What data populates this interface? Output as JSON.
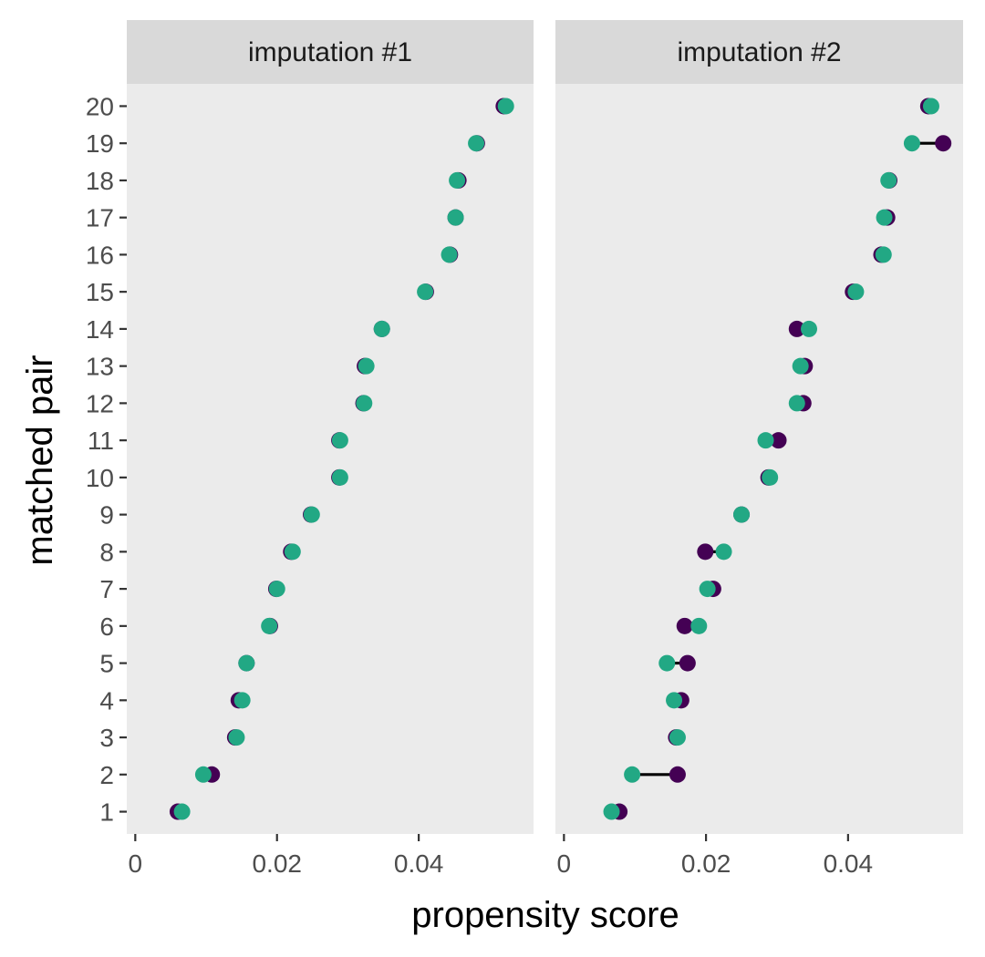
{
  "chart_data": {
    "type": "scatter",
    "xlabel": "propensity score",
    "ylabel": "matched pair",
    "xlim": [
      -0.0012,
      0.0562
    ],
    "ylim": [
      0.4,
      20.6
    ],
    "x_ticks": [
      0,
      0.02,
      0.04
    ],
    "x_tick_labels": [
      "0",
      "0.02",
      "0.04"
    ],
    "y_ticks": [
      1,
      2,
      3,
      4,
      5,
      6,
      7,
      8,
      9,
      10,
      11,
      12,
      13,
      14,
      15,
      16,
      17,
      18,
      19,
      20
    ],
    "y_tick_labels": [
      "1",
      "2",
      "3",
      "4",
      "5",
      "6",
      "7",
      "8",
      "9",
      "10",
      "11",
      "12",
      "13",
      "14",
      "15",
      "16",
      "17",
      "18",
      "19",
      "20"
    ],
    "grid": false,
    "legend": "none",
    "colors": {
      "panel_bg": "#ebebeb",
      "strip_bg": "#d9d9d9",
      "series_a": "#440154",
      "series_b": "#22a884",
      "segment": "#000000"
    },
    "panels": [
      {
        "title": "imputation #1",
        "pairs": [
          1,
          2,
          3,
          4,
          5,
          6,
          7,
          8,
          9,
          10,
          11,
          12,
          13,
          14,
          15,
          16,
          17,
          18,
          19,
          20
        ],
        "series": [
          {
            "values": [
              0.006,
              0.0108,
              0.0141,
              0.0146,
              0.0157,
              0.019,
              0.0199,
              0.022,
              0.0248,
              0.0288,
              0.0288,
              0.0322,
              0.0324,
              0.0348,
              0.041,
              0.0444,
              0.0452,
              0.0456,
              0.0482,
              0.052
            ]
          },
          {
            "values": [
              0.0066,
              0.0096,
              0.0143,
              0.0151,
              0.0157,
              0.0189,
              0.02,
              0.0222,
              0.0249,
              0.0289,
              0.0289,
              0.0323,
              0.0326,
              0.0348,
              0.0409,
              0.0443,
              0.0452,
              0.0454,
              0.0481,
              0.0523
            ]
          }
        ]
      },
      {
        "title": "imputation #2",
        "pairs": [
          1,
          2,
          3,
          4,
          5,
          6,
          7,
          8,
          9,
          10,
          11,
          12,
          13,
          14,
          15,
          16,
          17,
          18,
          19,
          20
        ],
        "series": [
          {
            "values": [
              0.0078,
              0.016,
              0.0158,
              0.0165,
              0.0174,
              0.017,
              0.021,
              0.0199,
              0.025,
              0.0288,
              0.0302,
              0.0337,
              0.0339,
              0.0328,
              0.0407,
              0.0447,
              0.0455,
              0.0458,
              0.0534,
              0.0513
            ]
          },
          {
            "values": [
              0.0067,
              0.0096,
              0.016,
              0.0155,
              0.0145,
              0.019,
              0.0202,
              0.0225,
              0.025,
              0.029,
              0.0284,
              0.0328,
              0.0333,
              0.0345,
              0.0411,
              0.045,
              0.0451,
              0.0457,
              0.049,
              0.0517
            ]
          }
        ]
      }
    ]
  }
}
